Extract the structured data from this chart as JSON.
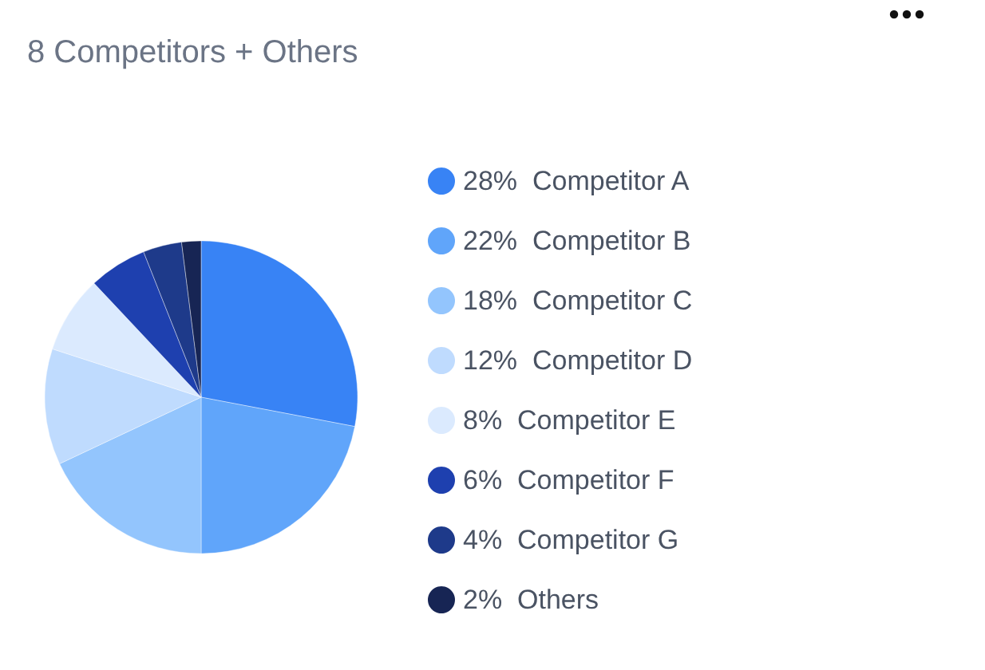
{
  "chart_data": {
    "type": "pie",
    "title": "8 Competitors + Others",
    "categories": [
      "Competitor A",
      "Competitor B",
      "Competitor C",
      "Competitor D",
      "Competitor E",
      "Competitor F",
      "Competitor G",
      "Others"
    ],
    "values": [
      28,
      22,
      18,
      12,
      8,
      6,
      4,
      2
    ],
    "value_labels": [
      "28%",
      "22%",
      "18%",
      "12%",
      "8%",
      "6%",
      "4%",
      "2%"
    ],
    "colors": [
      "#3883f5",
      "#60a5fa",
      "#93c5fd",
      "#bfdbfe",
      "#dbeafe",
      "#1e40af",
      "#1e3a8a",
      "#172554"
    ],
    "legend": "right"
  }
}
